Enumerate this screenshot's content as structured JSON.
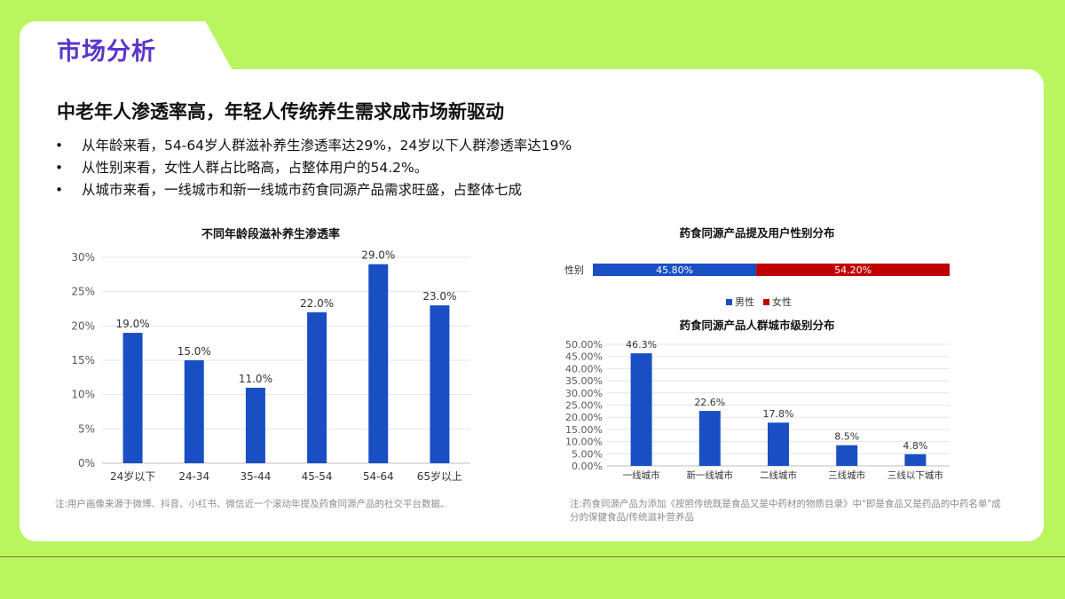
{
  "section_title": "市场分析",
  "headline": "中老年人渗透率高，年轻人传统养生需求成市场新驱动",
  "bullets": [
    "从年龄来看，54-64岁人群滋补养生渗透率达29%，24岁以下人群渗透率达19%",
    "从性别来看，女性人群占比略高，占整体用户的54.2%。",
    "从城市来看，一线城市和新一线城市药食同源产品需求旺盛，占整体七成"
  ],
  "note_left": "注:用户画像来源于微博、抖音、小红书、微信近一个滚动年提及药食同源产品的社交平台数据。",
  "note_right": "注:药食同源产品为添加《按照传统既是食品又是中药材的物质目录》中\"即是食品又是药品的中药名单\"成分的保健食品/传统滋补营养品",
  "colors": {
    "bar_blue": "#1a4fc4",
    "red": "#c00000",
    "accent_purple": "#5a35c9",
    "bg_green": "#b9f55e"
  },
  "chart_data": [
    {
      "type": "bar",
      "title": "不同年龄段滋补养生渗透率",
      "categories": [
        "24岁以下",
        "24-34",
        "35-44",
        "45-54",
        "54-64",
        "65岁以上"
      ],
      "values": [
        19.0,
        15.0,
        11.0,
        22.0,
        29.0,
        23.0
      ],
      "value_labels": [
        "19.0%",
        "15.0%",
        "11.0%",
        "22.0%",
        "29.0%",
        "23.0%"
      ],
      "yticks": [
        "0%",
        "5%",
        "10%",
        "15%",
        "20%",
        "25%",
        "30%"
      ],
      "ylim": [
        0,
        30
      ],
      "grid": true
    },
    {
      "type": "bar",
      "title": "药食同源产品提及用户性别分布",
      "stacked": true,
      "orientation": "horizontal",
      "categories": [
        "性别"
      ],
      "series": [
        {
          "name": "男性",
          "values": [
            45.8
          ],
          "label": "45.80%"
        },
        {
          "name": "女性",
          "values": [
            54.2
          ],
          "label": "54.20%"
        }
      ],
      "legend": "bottom"
    },
    {
      "type": "bar",
      "title": "药食同源产品人群城市级别分布",
      "categories": [
        "一线城市",
        "新一线城市",
        "二线城市",
        "三线城市",
        "三线以下城市"
      ],
      "values": [
        46.3,
        22.6,
        17.8,
        8.5,
        4.8
      ],
      "value_labels": [
        "46.3%",
        "22.6%",
        "17.8%",
        "8.5%",
        "4.8%"
      ],
      "yticks": [
        "0.00%",
        "5.00%",
        "10.00%",
        "15.00%",
        "20.00%",
        "25.00%",
        "30.00%",
        "35.00%",
        "40.00%",
        "45.00%",
        "50.00%"
      ],
      "ylim": [
        0,
        50
      ],
      "grid": true
    }
  ]
}
